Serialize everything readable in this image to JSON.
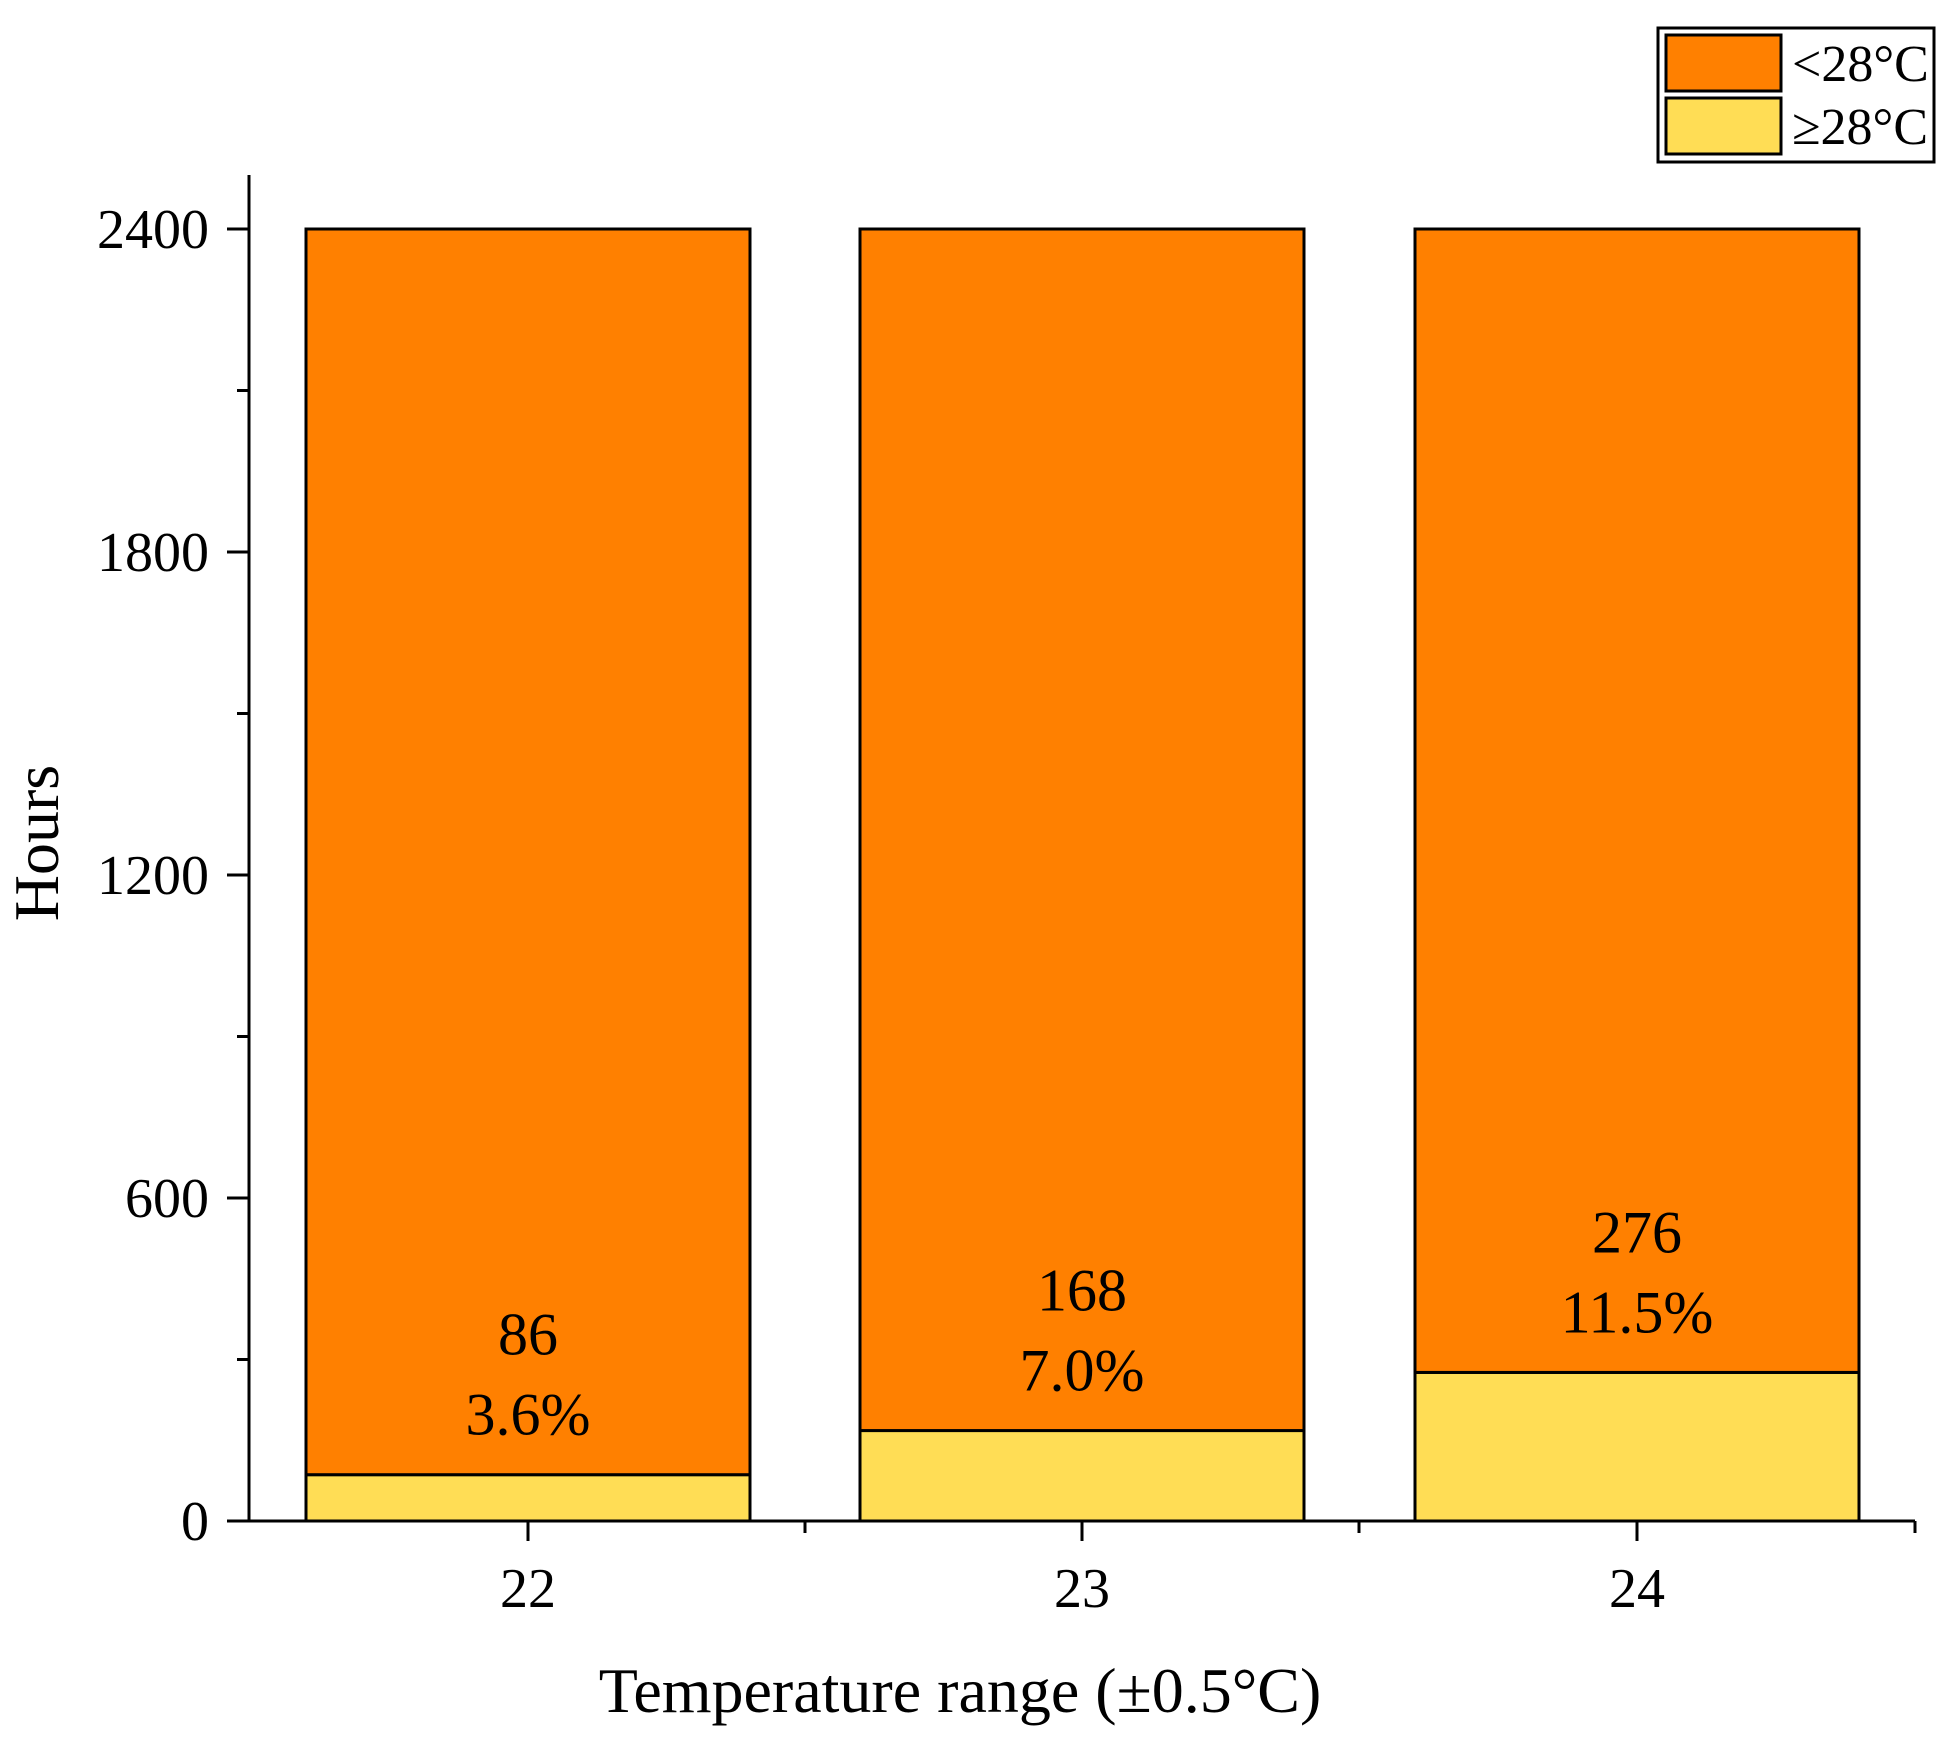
{
  "chart_data": {
    "type": "bar",
    "stacked": true,
    "categories": [
      "22",
      "23",
      "24"
    ],
    "series": [
      {
        "name": "≥28°C",
        "color": "#FFDD55",
        "values": [
          86,
          168,
          276
        ]
      },
      {
        "name": "<28°C",
        "color": "#FF8000",
        "values": [
          2314,
          2232,
          2124
        ]
      }
    ],
    "annotations": [
      {
        "category": "22",
        "count": "86",
        "percent": "3.6%"
      },
      {
        "category": "23",
        "count": "168",
        "percent": "7.0%"
      },
      {
        "category": "24",
        "count": "276",
        "percent": "11.5%"
      }
    ],
    "title": "",
    "xlabel": "Temperature range (±0.5°C)",
    "ylabel": "Hours",
    "ylim": [
      0,
      2500
    ],
    "yticks": [
      0,
      600,
      1200,
      1800,
      2400
    ],
    "yticks_minor_step": 300,
    "legend": {
      "placement": "top-right",
      "entries": [
        {
          "label": "<28°C",
          "color": "#FF8000"
        },
        {
          "label": "≥28°C",
          "color": "#FFDD55"
        }
      ]
    },
    "grid": false
  }
}
